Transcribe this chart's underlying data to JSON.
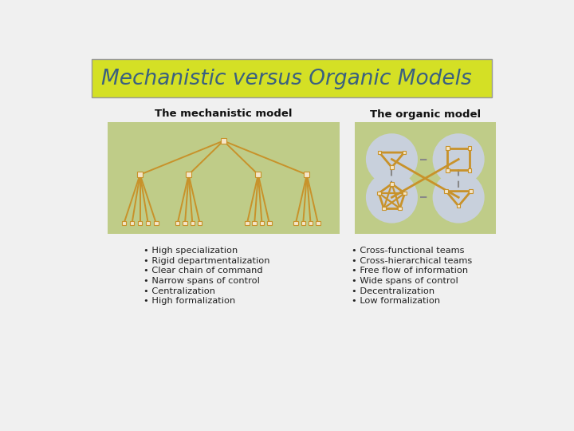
{
  "title": "Mechanistic versus Organic Models",
  "title_bg": "#d4e025",
  "title_color": "#3a6080",
  "bg_color": "#f0f0f0",
  "panel_bg": "#bfcc88",
  "mech_title": "The mechanistic model",
  "org_title": "The organic model",
  "node_color": "#f5e6c8",
  "node_edge": "#c8922a",
  "line_color": "#c8922a",
  "circle_bg": "#c8d0dc",
  "shape_color": "#c8922a",
  "bullet_color": "#222222",
  "mech_bullets": [
    "High specialization",
    "Rigid departmentalization",
    "Clear chain of command",
    "Narrow spans of control",
    "Centralization",
    "High formalization"
  ],
  "org_bullets": [
    "Cross-functional teams",
    "Cross-hierarchical teams",
    "Free flow of information",
    "Wide spans of control",
    "Decentralization",
    "Low formalization"
  ]
}
